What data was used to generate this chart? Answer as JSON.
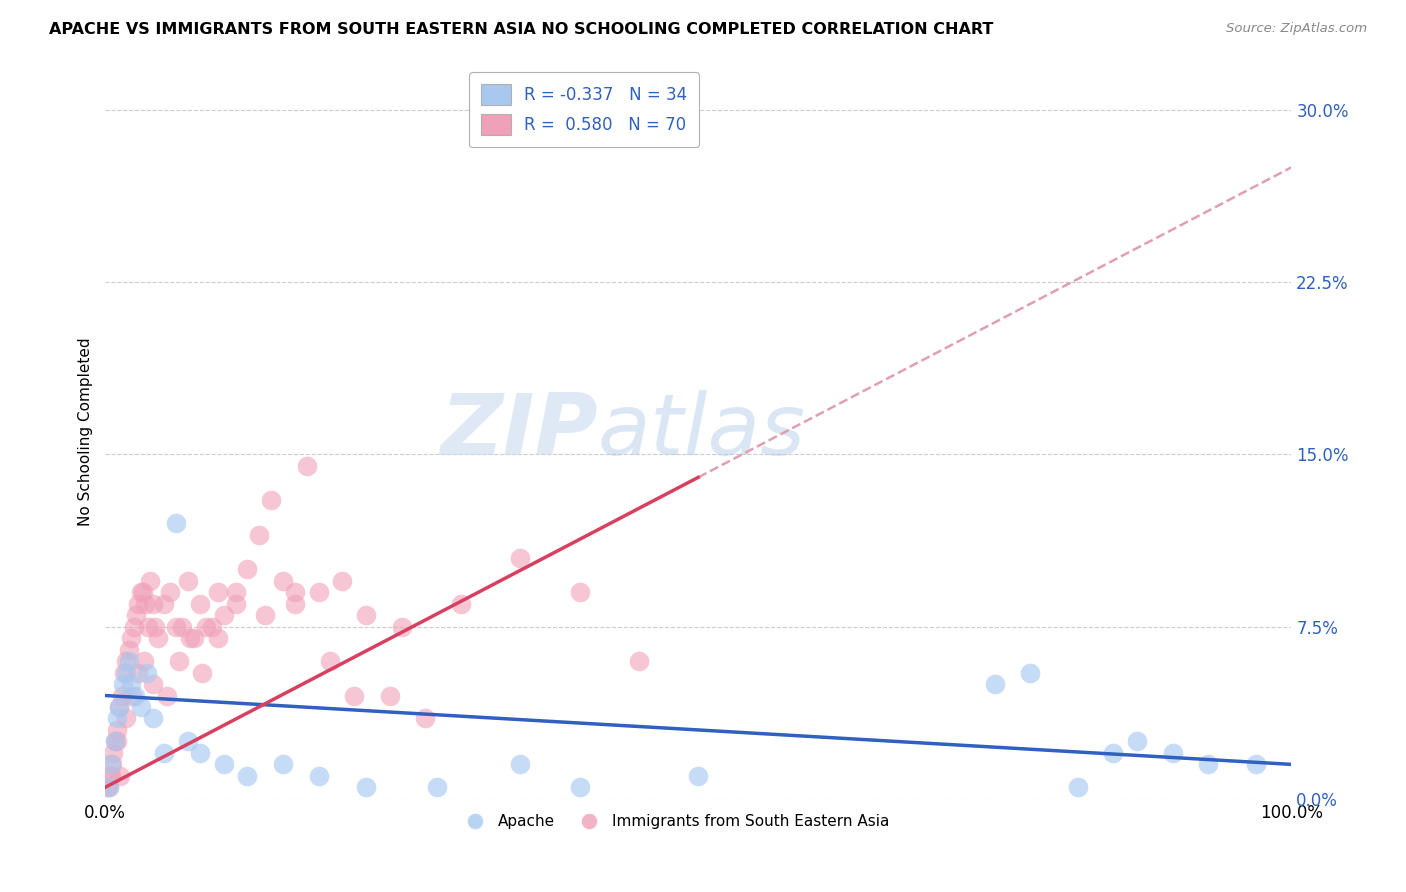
{
  "title": "APACHE VS IMMIGRANTS FROM SOUTH EASTERN ASIA NO SCHOOLING COMPLETED CORRELATION CHART",
  "source": "Source: ZipAtlas.com",
  "ylabel": "No Schooling Completed",
  "ytick_vals": [
    0.0,
    7.5,
    15.0,
    22.5,
    30.0
  ],
  "xlim": [
    0.0,
    100.0
  ],
  "ylim": [
    0.0,
    32.0
  ],
  "legend_blue_r": "-0.337",
  "legend_blue_n": "34",
  "legend_pink_r": "0.580",
  "legend_pink_n": "70",
  "blue_color": "#a8c8f0",
  "pink_color": "#f0a0b8",
  "blue_line_color": "#3060c0",
  "pink_line_color": "#d84060",
  "dashed_line_color": "#e0a0b0",
  "watermark_zip": "ZIP",
  "watermark_atlas": "atlas",
  "title_fontsize": 11.5,
  "source_fontsize": 9.5,
  "blue_scatter_x": [
    0.3,
    0.5,
    0.8,
    1.0,
    1.2,
    1.5,
    1.8,
    2.0,
    2.2,
    2.5,
    3.0,
    3.5,
    4.0,
    5.0,
    6.0,
    7.0,
    8.0,
    10.0,
    12.0,
    15.0,
    18.0,
    22.0,
    28.0,
    35.0,
    40.0,
    50.0,
    75.0,
    78.0,
    82.0,
    85.0,
    87.0,
    90.0,
    93.0,
    97.0
  ],
  "blue_scatter_y": [
    0.5,
    1.5,
    2.5,
    3.5,
    4.0,
    5.0,
    5.5,
    6.0,
    5.0,
    4.5,
    4.0,
    5.5,
    3.5,
    2.0,
    12.0,
    2.5,
    2.0,
    1.5,
    1.0,
    1.5,
    1.0,
    0.5,
    0.5,
    1.5,
    0.5,
    1.0,
    5.0,
    5.5,
    0.5,
    2.0,
    2.5,
    2.0,
    1.5,
    1.5
  ],
  "pink_scatter_x": [
    0.2,
    0.4,
    0.6,
    0.8,
    1.0,
    1.2,
    1.4,
    1.6,
    1.8,
    2.0,
    2.2,
    2.4,
    2.6,
    2.8,
    3.0,
    3.2,
    3.4,
    3.6,
    3.8,
    4.0,
    4.2,
    4.5,
    5.0,
    5.5,
    6.0,
    6.5,
    7.0,
    7.5,
    8.0,
    8.5,
    9.0,
    9.5,
    10.0,
    11.0,
    12.0,
    13.0,
    14.0,
    15.0,
    16.0,
    17.0,
    18.0,
    19.0,
    20.0,
    22.0,
    24.0,
    25.0,
    27.0,
    30.0,
    35.0,
    40.0,
    0.3,
    0.5,
    0.7,
    1.0,
    1.3,
    1.8,
    2.3,
    2.8,
    3.3,
    4.0,
    5.2,
    6.2,
    7.2,
    8.2,
    9.5,
    11.0,
    13.5,
    16.0,
    21.0,
    45.0
  ],
  "pink_scatter_y": [
    0.5,
    1.0,
    1.5,
    2.5,
    3.0,
    4.0,
    4.5,
    5.5,
    6.0,
    6.5,
    7.0,
    7.5,
    8.0,
    8.5,
    9.0,
    9.0,
    8.5,
    7.5,
    9.5,
    8.5,
    7.5,
    7.0,
    8.5,
    9.0,
    7.5,
    7.5,
    9.5,
    7.0,
    8.5,
    7.5,
    7.5,
    9.0,
    8.0,
    8.5,
    10.0,
    11.5,
    13.0,
    9.5,
    8.5,
    14.5,
    9.0,
    6.0,
    9.5,
    8.0,
    4.5,
    7.5,
    3.5,
    8.5,
    10.5,
    9.0,
    0.5,
    1.0,
    2.0,
    2.5,
    1.0,
    3.5,
    4.5,
    5.5,
    6.0,
    5.0,
    4.5,
    6.0,
    7.0,
    5.5,
    7.0,
    9.0,
    8.0,
    9.0,
    4.5,
    6.0
  ],
  "pink_line_x_end": 50.0,
  "pink_line_y_start": 0.5,
  "pink_line_y_end": 14.0,
  "blue_line_y_start": 4.5,
  "blue_line_y_end": 1.5
}
